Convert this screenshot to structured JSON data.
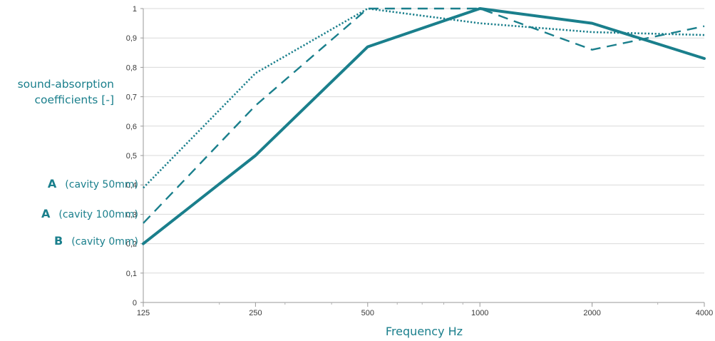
{
  "chart_data": {
    "type": "line",
    "xscale": "log2",
    "x": [
      125,
      250,
      500,
      1000,
      2000,
      4000
    ],
    "xticklabels": [
      "125",
      "250",
      "500",
      "1000",
      "2000",
      "4000"
    ],
    "yticks": [
      0,
      0.1,
      0.2,
      0.3,
      0.4,
      0.5,
      0.6,
      0.7,
      0.8,
      0.9,
      1
    ],
    "yticklabels": [
      "0",
      "0,1",
      "0,2",
      "0,3",
      "0,4",
      "0,5",
      "0,6",
      "0,7",
      "0,8",
      "0,9",
      "1"
    ],
    "ylim": [
      0,
      1
    ],
    "xlabel": "Frequency Hz",
    "ylabel": [
      "sound-absorption",
      "coefficients [-]"
    ],
    "grid": "horizontal",
    "line_color": "#1a7f8c",
    "series": [
      {
        "letter": "A",
        "desc": "(cavity 50mm)",
        "style": "dotted",
        "values": [
          0.39,
          0.78,
          1.0,
          0.95,
          0.92,
          0.91
        ]
      },
      {
        "letter": "A",
        "desc": "(cavity 100mm)",
        "style": "dashed",
        "values": [
          0.27,
          0.67,
          1.0,
          1.0,
          0.86,
          0.94
        ]
      },
      {
        "letter": "B",
        "desc": "(cavity 0mm)",
        "style": "solid",
        "values": [
          0.2,
          0.5,
          0.87,
          1.0,
          0.95,
          0.83
        ]
      }
    ]
  }
}
